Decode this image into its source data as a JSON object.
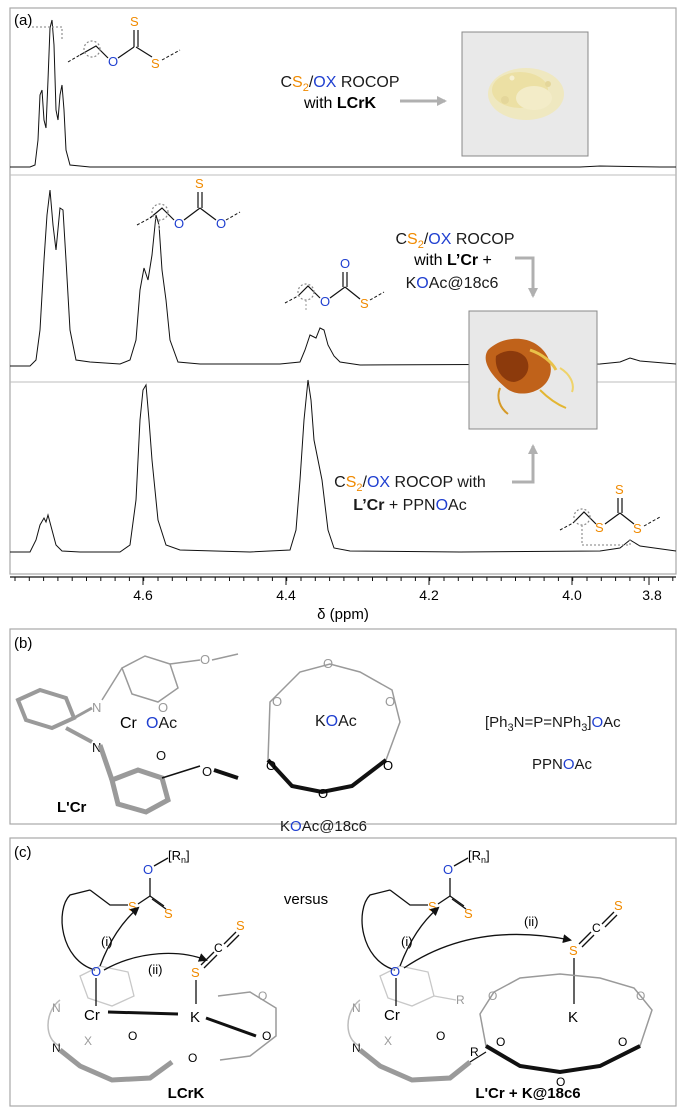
{
  "panel_a": {
    "label": "(a)",
    "x_axis": {
      "title": "δ (ppm)",
      "ticks": [
        "4.6",
        "4.4",
        "4.2",
        "4.0",
        "3.8"
      ]
    },
    "spectrum_top_caption": {
      "line1": [
        {
          "t": "C",
          "c": "#1a1a1a"
        },
        {
          "t": "S",
          "c": "#f08a00"
        },
        {
          "t": "2",
          "c": "#f08a00",
          "sub": true
        },
        {
          "t": "/",
          "c": "#1a1a1a"
        },
        {
          "t": "OX",
          "c": "#1f3fd0"
        },
        {
          "t": " ROCOP",
          "c": "#1a1a1a"
        }
      ],
      "line2_prefix": "with ",
      "line2_bold": "LCrK"
    },
    "spectrum_mid_caption": {
      "line1": [
        {
          "t": "C",
          "c": "#1a1a1a"
        },
        {
          "t": "S",
          "c": "#f08a00"
        },
        {
          "t": "2",
          "c": "#f08a00",
          "sub": true
        },
        {
          "t": "/",
          "c": "#1a1a1a"
        },
        {
          "t": "OX",
          "c": "#1f3fd0"
        },
        {
          "t": " ROCOP",
          "c": "#1a1a1a"
        }
      ],
      "line2_prefix": "with ",
      "line2_bold": "L’Cr",
      "line2_suffix": " +",
      "line3": [
        {
          "t": "K",
          "c": "#1a1a1a"
        },
        {
          "t": "O",
          "c": "#1f3fd0"
        },
        {
          "t": "Ac@18c6",
          "c": "#1a1a1a"
        }
      ]
    },
    "spectrum_bottom_caption": {
      "line1": [
        {
          "t": "C",
          "c": "#1a1a1a"
        },
        {
          "t": "S",
          "c": "#f08a00"
        },
        {
          "t": "2",
          "c": "#f08a00",
          "sub": true
        },
        {
          "t": "/",
          "c": "#1a1a1a"
        },
        {
          "t": "OX",
          "c": "#1f3fd0"
        },
        {
          "t": " ROCOP with",
          "c": "#1a1a1a"
        }
      ],
      "line2": [
        {
          "t": "L’Cr",
          "c": "#1a1a1a",
          "bold": true
        },
        {
          "t": " + PPN",
          "c": "#1a1a1a"
        },
        {
          "t": "O",
          "c": "#1f3fd0"
        },
        {
          "t": "Ac",
          "c": "#1a1a1a"
        }
      ]
    }
  },
  "panel_b": {
    "label": "(b)",
    "salen_label": "L'Cr",
    "salen_metal": "Cr",
    "salen_ligand": [
      {
        "t": "O",
        "c": "#1f3fd0"
      },
      {
        "t": "Ac",
        "c": "#1a1a1a"
      }
    ],
    "crown_center": [
      {
        "t": "K",
        "c": "#1a1a1a"
      },
      {
        "t": "O",
        "c": "#1f3fd0"
      },
      {
        "t": "Ac",
        "c": "#1a1a1a"
      }
    ],
    "crown_label": [
      {
        "t": "K",
        "c": "#1a1a1a"
      },
      {
        "t": "O",
        "c": "#1f3fd0"
      },
      {
        "t": "Ac@18c6",
        "c": "#1a1a1a"
      }
    ],
    "ppn_formula": [
      {
        "t": "[Ph",
        "c": "#1a1a1a"
      },
      {
        "t": "3",
        "c": "#1a1a1a",
        "sub": true
      },
      {
        "t": "N=P=NPh",
        "c": "#1a1a1a"
      },
      {
        "t": "3",
        "c": "#1a1a1a",
        "sub": true
      },
      {
        "t": "]",
        "c": "#1a1a1a"
      },
      {
        "t": "O",
        "c": "#1f3fd0"
      },
      {
        "t": "Ac",
        "c": "#1a1a1a"
      }
    ],
    "ppn_label": [
      {
        "t": "PPN",
        "c": "#1a1a1a"
      },
      {
        "t": "O",
        "c": "#1f3fd0"
      },
      {
        "t": "Ac",
        "c": "#1a1a1a"
      }
    ]
  },
  "panel_c": {
    "label": "(c)",
    "versus": "versus",
    "left_label": "LCrK",
    "right_label": "L'Cr + K@18c6",
    "step_i": "(i)",
    "step_ii": "(ii)",
    "polymer": "[R",
    "polymer_sub": "n",
    "polymer_end": "]",
    "cr": "Cr",
    "k": "K",
    "x": "X",
    "n": "N",
    "r": "R",
    "o": "O",
    "s": "S",
    "c": "C"
  },
  "colors": {
    "sulfur": "#f08a00",
    "oxygen": "#1f3fd0",
    "grey": "#9a9a9a",
    "frame": "#a8a8a8"
  }
}
